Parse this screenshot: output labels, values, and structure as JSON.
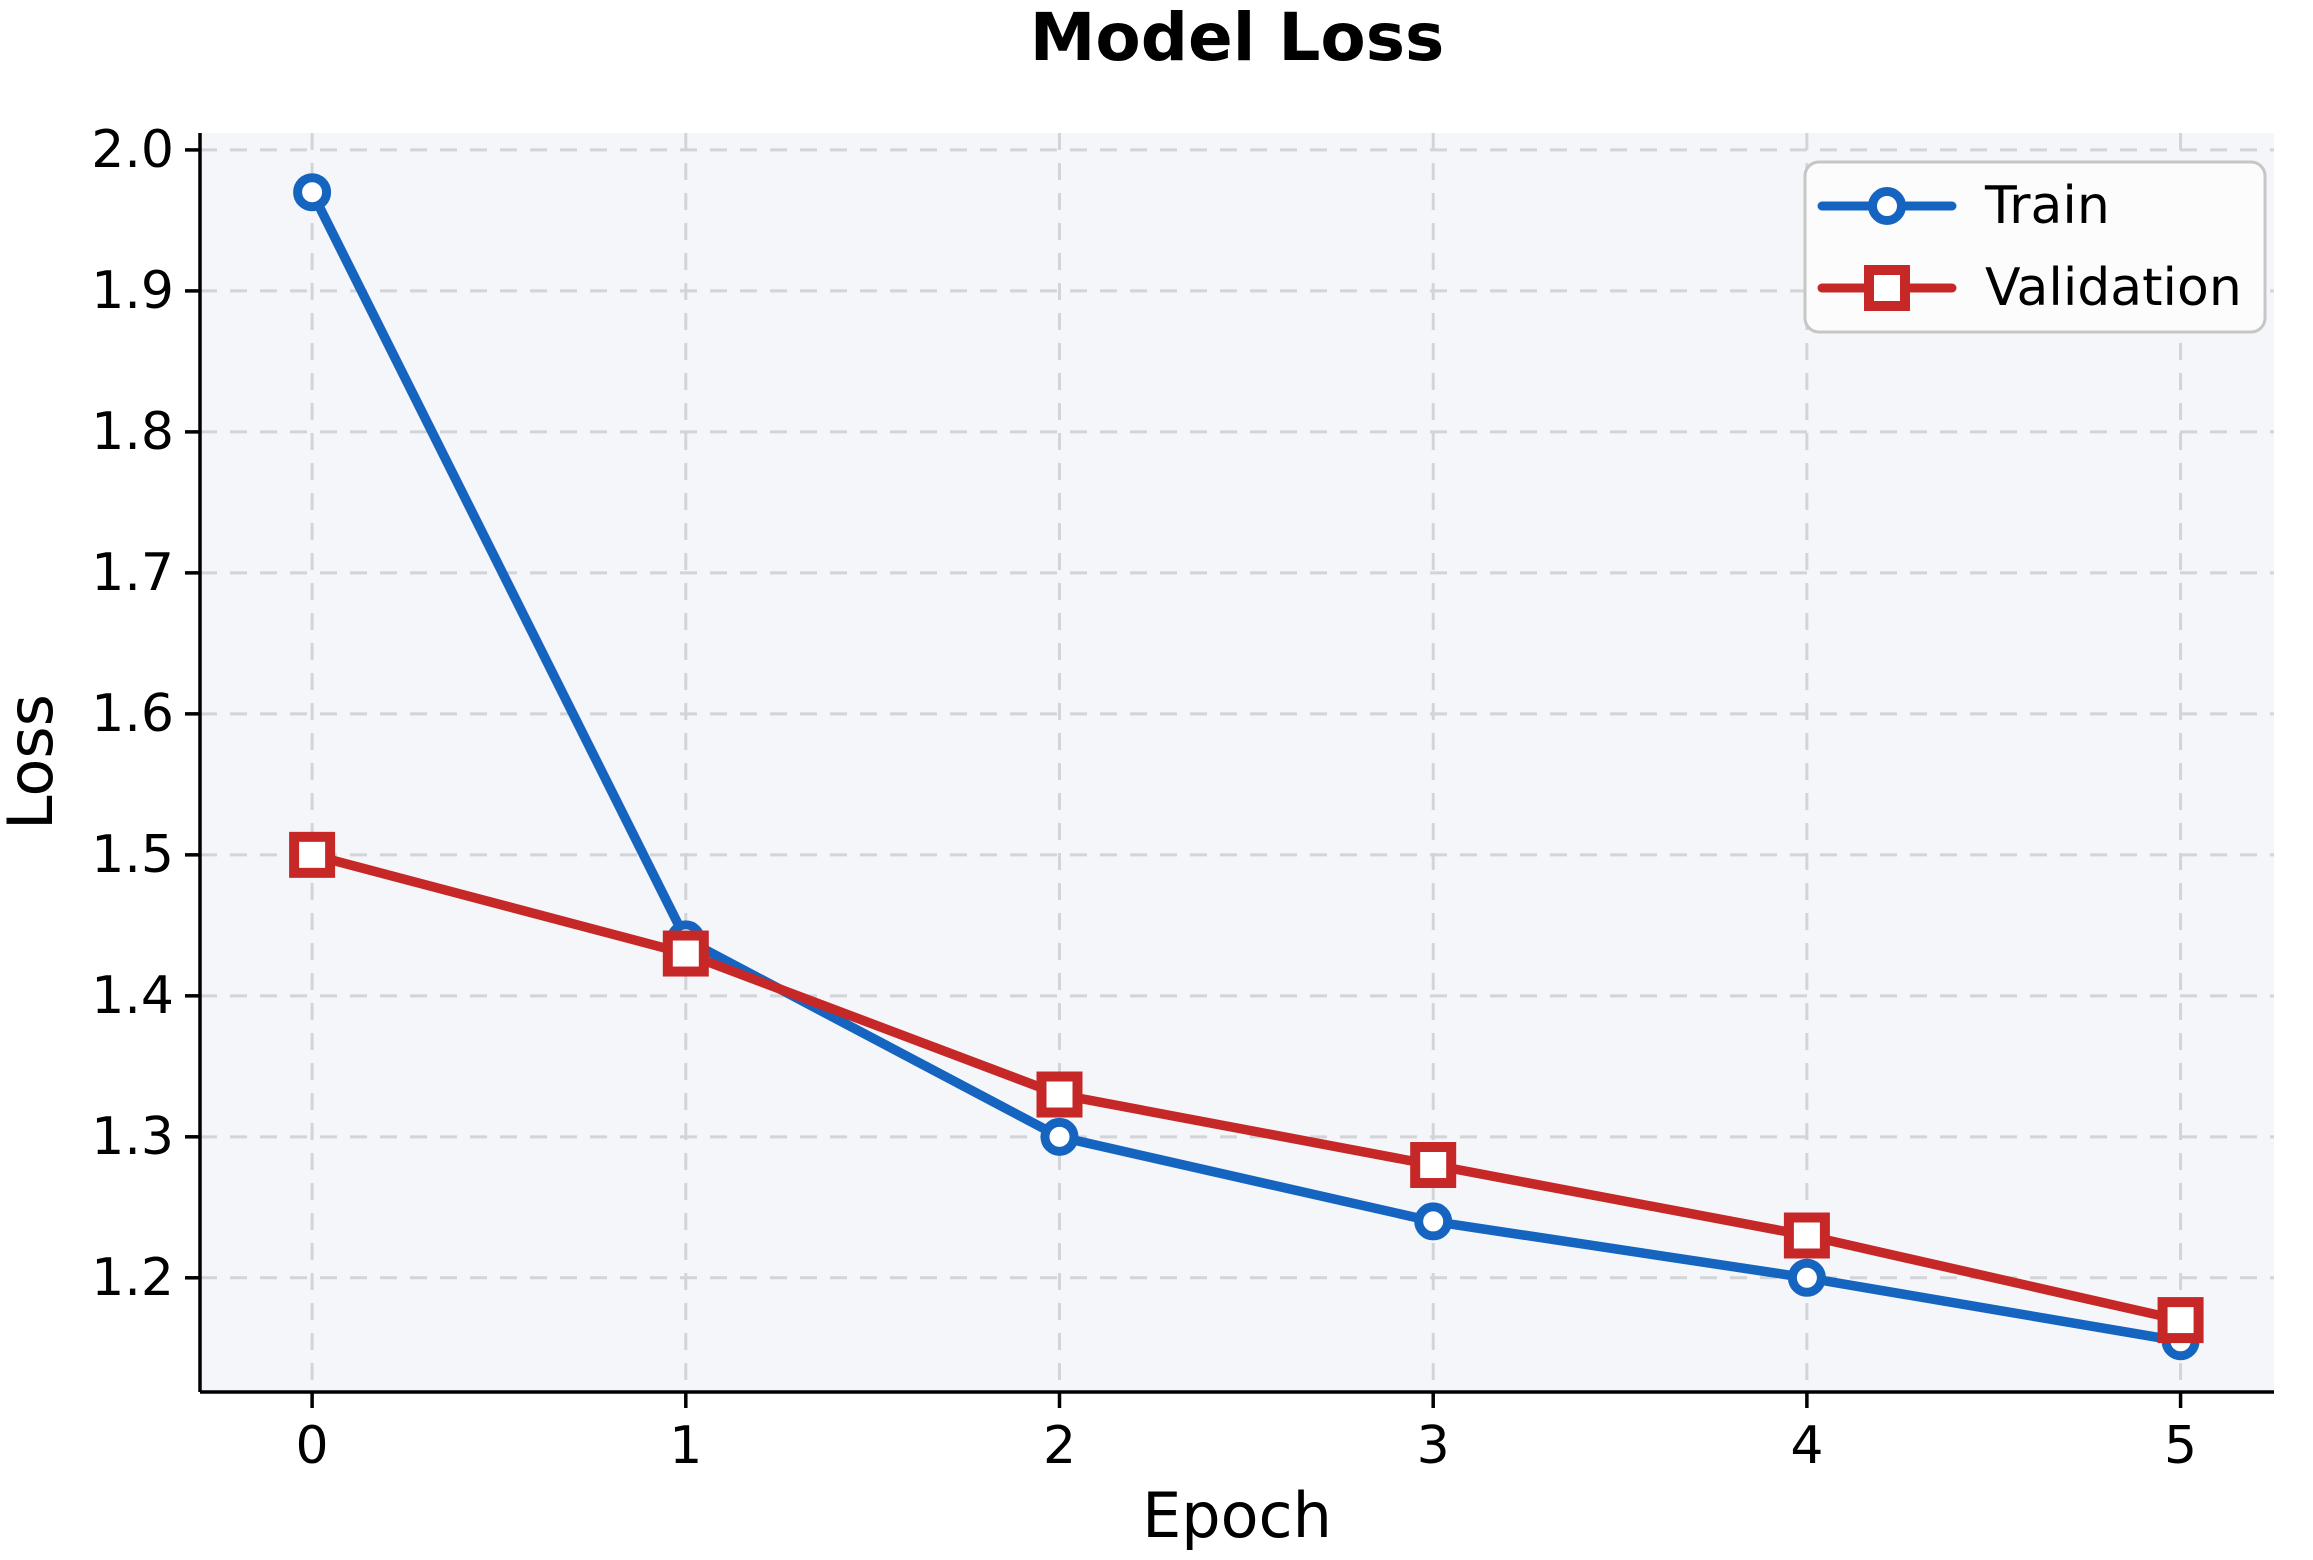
{
  "chart_data": {
    "type": "line",
    "title": "Model Loss",
    "xlabel": "Epoch",
    "ylabel": "Loss",
    "x": [
      0,
      1,
      2,
      3,
      4,
      5
    ],
    "series": [
      {
        "name": "Train",
        "color": "#1565c0",
        "marker": "circle",
        "values": [
          1.97,
          1.44,
          1.3,
          1.24,
          1.2,
          1.155
        ]
      },
      {
        "name": "Validation",
        "color": "#c62828",
        "marker": "square",
        "values": [
          1.5,
          1.43,
          1.33,
          1.28,
          1.23,
          1.17
        ]
      }
    ],
    "xlim": [
      -0.3,
      5.25
    ],
    "ylim": [
      1.119,
      2.012
    ],
    "xticks": [
      0,
      1,
      2,
      3,
      4,
      5
    ],
    "yticks": [
      2.0,
      1.9,
      1.8,
      1.7,
      1.6,
      1.5,
      1.4,
      1.3,
      1.2
    ],
    "grid": true,
    "grid_style": "dashed",
    "legend": {
      "position": "top-right",
      "labels": [
        "Train",
        "Validation"
      ]
    },
    "styles": {
      "figure_bg": "#ffffff",
      "plot_bg": "#f5f6f9",
      "grid_color": "#d2d4d8",
      "spine_color": "#000000",
      "tick_color": "#000000",
      "text_color": "#000000",
      "legend_bg": "#fcfcfc",
      "legend_border": "#c6c6c6",
      "marker_face": "#ffffff"
    }
  }
}
